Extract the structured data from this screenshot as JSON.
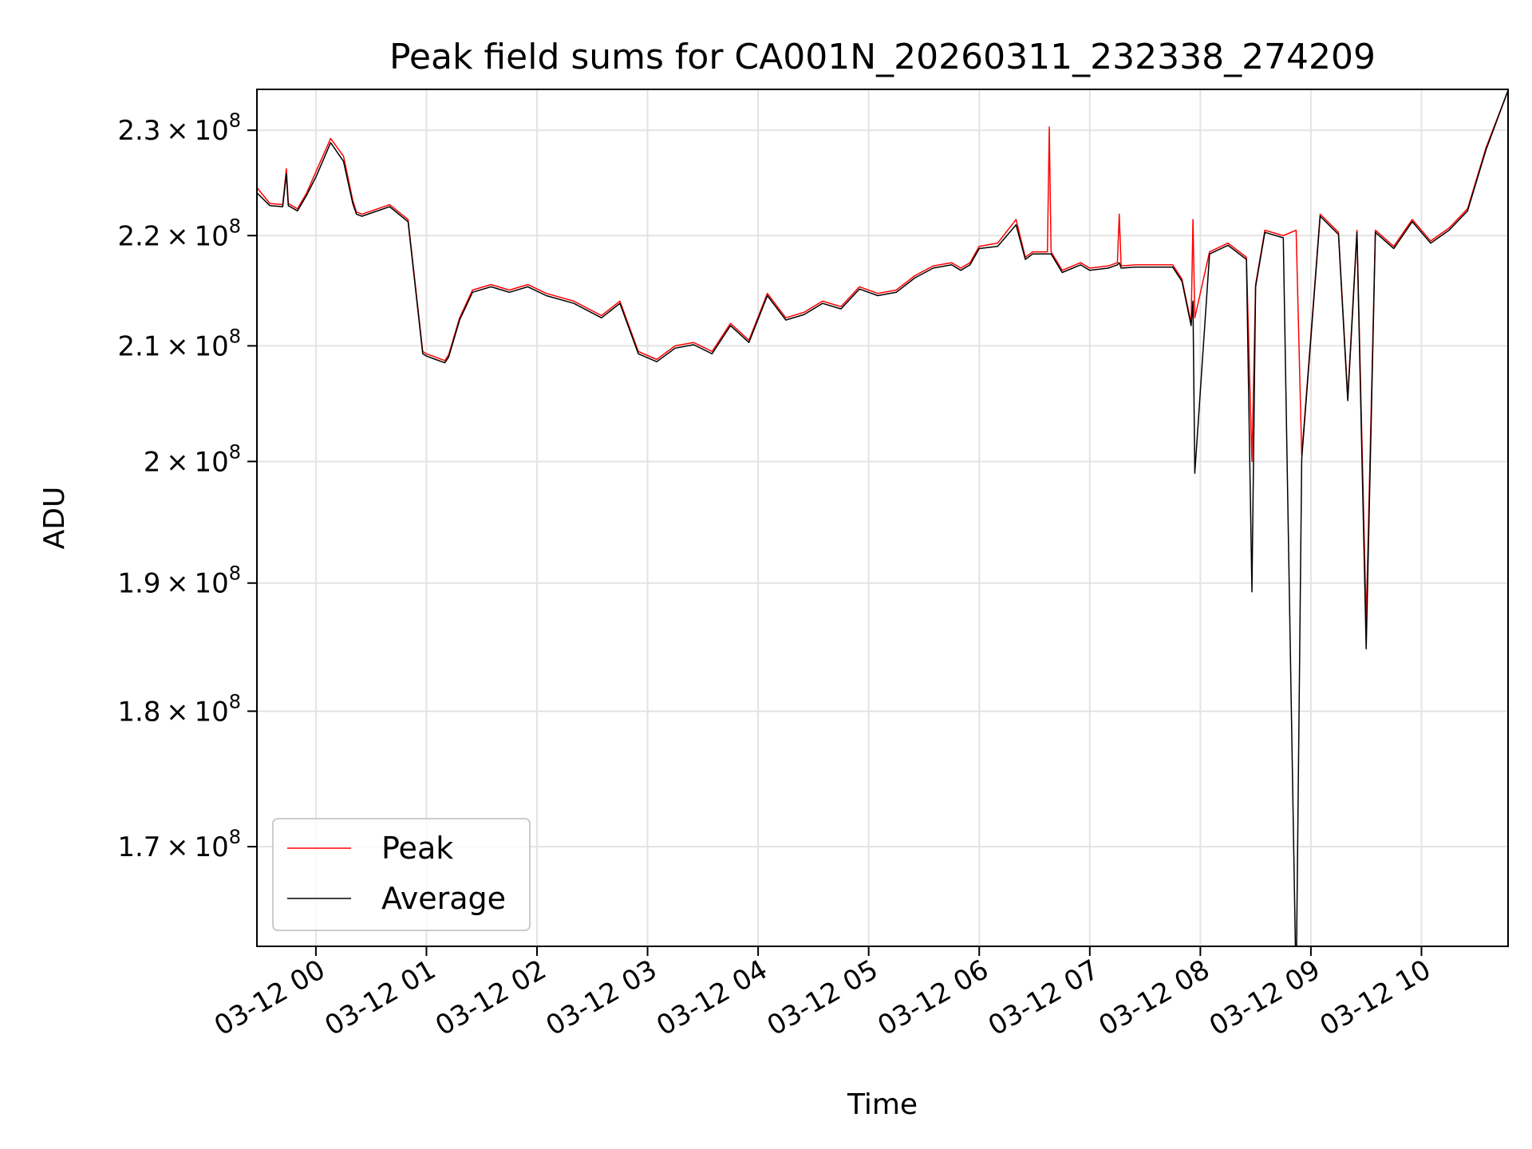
{
  "chart_data": {
    "type": "line",
    "title": "Peak field sums for CA001N_20260311_232338_274209",
    "xlabel": "Time",
    "ylabel": "ADU",
    "xlim": [
      "2026-03-11T23:28",
      "2026-03-12T10:47"
    ],
    "ylim": [
      163000000,
      234000000
    ],
    "y_scale": "log",
    "grid": true,
    "legend_position": "lower-left",
    "x_ticks": [
      {
        "value": "2026-03-12T00:00",
        "label": "03-12 00"
      },
      {
        "value": "2026-03-12T01:00",
        "label": "03-12 01"
      },
      {
        "value": "2026-03-12T02:00",
        "label": "03-12 02"
      },
      {
        "value": "2026-03-12T03:00",
        "label": "03-12 03"
      },
      {
        "value": "2026-03-12T04:00",
        "label": "03-12 04"
      },
      {
        "value": "2026-03-12T05:00",
        "label": "03-12 05"
      },
      {
        "value": "2026-03-12T06:00",
        "label": "03-12 06"
      },
      {
        "value": "2026-03-12T07:00",
        "label": "03-12 07"
      },
      {
        "value": "2026-03-12T08:00",
        "label": "03-12 08"
      },
      {
        "value": "2026-03-12T09:00",
        "label": "03-12 09"
      },
      {
        "value": "2026-03-12T10:00",
        "label": "03-12 10"
      }
    ],
    "y_ticks": [
      {
        "value": 170000000,
        "mantissa": "1.7",
        "exponent": "8"
      },
      {
        "value": 180000000,
        "mantissa": "1.8",
        "exponent": "8"
      },
      {
        "value": 190000000,
        "mantissa": "1.9",
        "exponent": "8"
      },
      {
        "value": 200000000,
        "mantissa": "2",
        "exponent": "8"
      },
      {
        "value": 210000000,
        "mantissa": "2.1",
        "exponent": "8"
      },
      {
        "value": 220000000,
        "mantissa": "2.2",
        "exponent": "8"
      },
      {
        "value": 230000000,
        "mantissa": "2.3",
        "exponent": "8"
      }
    ],
    "y_tick_base": "10",
    "series": [
      {
        "name": "Peak",
        "color": "#ff0000",
        "x": [
          "2026-03-11T23:28",
          "2026-03-11T23:35",
          "2026-03-11T23:42",
          "2026-03-11T23:44",
          "2026-03-11T23:45",
          "2026-03-11T23:50",
          "2026-03-11T23:55",
          "2026-03-12T00:00",
          "2026-03-12T00:08",
          "2026-03-12T00:15",
          "2026-03-12T00:20",
          "2026-03-12T00:22",
          "2026-03-12T00:25",
          "2026-03-12T00:30",
          "2026-03-12T00:40",
          "2026-03-12T00:50",
          "2026-03-12T00:58",
          "2026-03-12T01:00",
          "2026-03-12T01:05",
          "2026-03-12T01:10",
          "2026-03-12T01:12",
          "2026-03-12T01:18",
          "2026-03-12T01:25",
          "2026-03-12T01:35",
          "2026-03-12T01:45",
          "2026-03-12T01:55",
          "2026-03-12T02:05",
          "2026-03-12T02:20",
          "2026-03-12T02:35",
          "2026-03-12T02:45",
          "2026-03-12T02:55",
          "2026-03-12T03:05",
          "2026-03-12T03:15",
          "2026-03-12T03:25",
          "2026-03-12T03:35",
          "2026-03-12T03:45",
          "2026-03-12T03:55",
          "2026-03-12T04:05",
          "2026-03-12T04:15",
          "2026-03-12T04:25",
          "2026-03-12T04:35",
          "2026-03-12T04:45",
          "2026-03-12T04:55",
          "2026-03-12T05:05",
          "2026-03-12T05:15",
          "2026-03-12T05:25",
          "2026-03-12T05:35",
          "2026-03-12T05:45",
          "2026-03-12T05:50",
          "2026-03-12T05:55",
          "2026-03-12T06:00",
          "2026-03-12T06:10",
          "2026-03-12T06:20",
          "2026-03-12T06:25",
          "2026-03-12T06:29",
          "2026-03-12T06:37",
          "2026-03-12T06:38",
          "2026-03-12T06:39",
          "2026-03-12T06:45",
          "2026-03-12T06:55",
          "2026-03-12T07:00",
          "2026-03-12T07:10",
          "2026-03-12T07:15",
          "2026-03-12T07:16",
          "2026-03-12T07:17",
          "2026-03-12T07:25",
          "2026-03-12T07:35",
          "2026-03-12T07:45",
          "2026-03-12T07:50",
          "2026-03-12T07:55",
          "2026-03-12T07:56",
          "2026-03-12T07:57",
          "2026-03-12T08:05",
          "2026-03-12T08:15",
          "2026-03-12T08:25",
          "2026-03-12T08:28",
          "2026-03-12T08:30",
          "2026-03-12T08:35",
          "2026-03-12T08:45",
          "2026-03-12T08:52",
          "2026-03-12T08:55",
          "2026-03-12T09:05",
          "2026-03-12T09:15",
          "2026-03-12T09:20",
          "2026-03-12T09:25",
          "2026-03-12T09:30",
          "2026-03-12T09:35",
          "2026-03-12T09:45",
          "2026-03-12T09:55",
          "2026-03-12T10:05",
          "2026-03-12T10:15",
          "2026-03-12T10:25",
          "2026-03-12T10:35",
          "2026-03-12T10:47"
        ],
        "y": [
          224500000,
          223000000,
          222900000,
          226300000,
          223000000,
          222500000,
          224000000,
          226000000,
          229200000,
          227500000,
          223300000,
          222200000,
          222000000,
          222300000,
          222900000,
          221500000,
          209500000,
          209300000,
          209000000,
          208700000,
          209200000,
          212500000,
          215000000,
          215500000,
          215000000,
          215500000,
          214700000,
          214000000,
          212700000,
          214000000,
          209500000,
          208800000,
          210000000,
          210300000,
          209500000,
          212000000,
          210500000,
          214700000,
          212500000,
          213000000,
          214000000,
          213500000,
          215300000,
          214700000,
          215000000,
          216300000,
          217200000,
          217500000,
          217000000,
          217500000,
          219000000,
          219300000,
          221500000,
          218000000,
          218500000,
          218500000,
          230300000,
          218500000,
          216800000,
          217500000,
          217000000,
          217200000,
          217500000,
          222000000,
          217200000,
          217300000,
          217300000,
          217300000,
          216000000,
          212000000,
          221500000,
          212500000,
          218500000,
          219300000,
          218000000,
          200000000,
          215500000,
          220500000,
          220000000,
          220500000,
          200500000,
          222000000,
          220300000,
          205500000,
          220500000,
          187000000,
          220500000,
          219000000,
          221500000,
          219500000,
          220700000,
          222500000,
          228300000,
          233900000
        ]
      },
      {
        "name": "Average",
        "color": "#000000",
        "x": [
          "2026-03-11T23:28",
          "2026-03-11T23:35",
          "2026-03-11T23:42",
          "2026-03-11T23:44",
          "2026-03-11T23:45",
          "2026-03-11T23:50",
          "2026-03-11T23:55",
          "2026-03-12T00:00",
          "2026-03-12T00:08",
          "2026-03-12T00:15",
          "2026-03-12T00:20",
          "2026-03-12T00:22",
          "2026-03-12T00:25",
          "2026-03-12T00:30",
          "2026-03-12T00:40",
          "2026-03-12T00:50",
          "2026-03-12T00:58",
          "2026-03-12T01:00",
          "2026-03-12T01:05",
          "2026-03-12T01:10",
          "2026-03-12T01:12",
          "2026-03-12T01:18",
          "2026-03-12T01:25",
          "2026-03-12T01:35",
          "2026-03-12T01:45",
          "2026-03-12T01:55",
          "2026-03-12T02:05",
          "2026-03-12T02:20",
          "2026-03-12T02:35",
          "2026-03-12T02:45",
          "2026-03-12T02:55",
          "2026-03-12T03:05",
          "2026-03-12T03:15",
          "2026-03-12T03:25",
          "2026-03-12T03:35",
          "2026-03-12T03:45",
          "2026-03-12T03:55",
          "2026-03-12T04:05",
          "2026-03-12T04:15",
          "2026-03-12T04:25",
          "2026-03-12T04:35",
          "2026-03-12T04:45",
          "2026-03-12T04:55",
          "2026-03-12T05:05",
          "2026-03-12T05:15",
          "2026-03-12T05:25",
          "2026-03-12T05:35",
          "2026-03-12T05:45",
          "2026-03-12T05:50",
          "2026-03-12T05:55",
          "2026-03-12T06:00",
          "2026-03-12T06:10",
          "2026-03-12T06:20",
          "2026-03-12T06:25",
          "2026-03-12T06:29",
          "2026-03-12T06:37",
          "2026-03-12T06:38",
          "2026-03-12T06:39",
          "2026-03-12T06:45",
          "2026-03-12T06:55",
          "2026-03-12T07:00",
          "2026-03-12T07:10",
          "2026-03-12T07:15",
          "2026-03-12T07:16",
          "2026-03-12T07:17",
          "2026-03-12T07:25",
          "2026-03-12T07:35",
          "2026-03-12T07:45",
          "2026-03-12T07:50",
          "2026-03-12T07:55",
          "2026-03-12T07:56",
          "2026-03-12T07:57",
          "2026-03-12T08:05",
          "2026-03-12T08:15",
          "2026-03-12T08:25",
          "2026-03-12T08:28",
          "2026-03-12T08:30",
          "2026-03-12T08:35",
          "2026-03-12T08:45",
          "2026-03-12T08:52",
          "2026-03-12T08:55",
          "2026-03-12T09:05",
          "2026-03-12T09:15",
          "2026-03-12T09:20",
          "2026-03-12T09:25",
          "2026-03-12T09:30",
          "2026-03-12T09:35",
          "2026-03-12T09:45",
          "2026-03-12T09:55",
          "2026-03-12T10:05",
          "2026-03-12T10:15",
          "2026-03-12T10:25",
          "2026-03-12T10:35",
          "2026-03-12T10:47"
        ],
        "y": [
          224000000,
          222800000,
          222700000,
          225800000,
          222800000,
          222300000,
          223800000,
          225500000,
          228800000,
          227000000,
          223000000,
          222000000,
          221800000,
          222100000,
          222700000,
          221300000,
          209300000,
          209100000,
          208800000,
          208500000,
          209000000,
          212300000,
          214800000,
          215300000,
          214800000,
          215300000,
          214500000,
          213800000,
          212500000,
          213800000,
          209300000,
          208600000,
          209800000,
          210100000,
          209300000,
          211800000,
          210300000,
          214500000,
          212300000,
          212800000,
          213800000,
          213300000,
          215100000,
          214500000,
          214800000,
          216100000,
          217000000,
          217300000,
          216800000,
          217300000,
          218800000,
          219000000,
          221000000,
          217800000,
          218300000,
          218300000,
          218300000,
          218300000,
          216600000,
          217300000,
          216800000,
          217000000,
          217300000,
          217500000,
          217000000,
          217100000,
          217100000,
          217100000,
          215800000,
          211800000,
          214000000,
          199000000,
          218300000,
          219100000,
          217800000,
          189300000,
          215300000,
          220300000,
          219800000,
          160000000,
          200200000,
          221800000,
          220100000,
          205200000,
          220300000,
          184800000,
          220300000,
          218800000,
          221300000,
          219300000,
          220500000,
          222300000,
          228100000,
          233900000
        ]
      }
    ]
  }
}
